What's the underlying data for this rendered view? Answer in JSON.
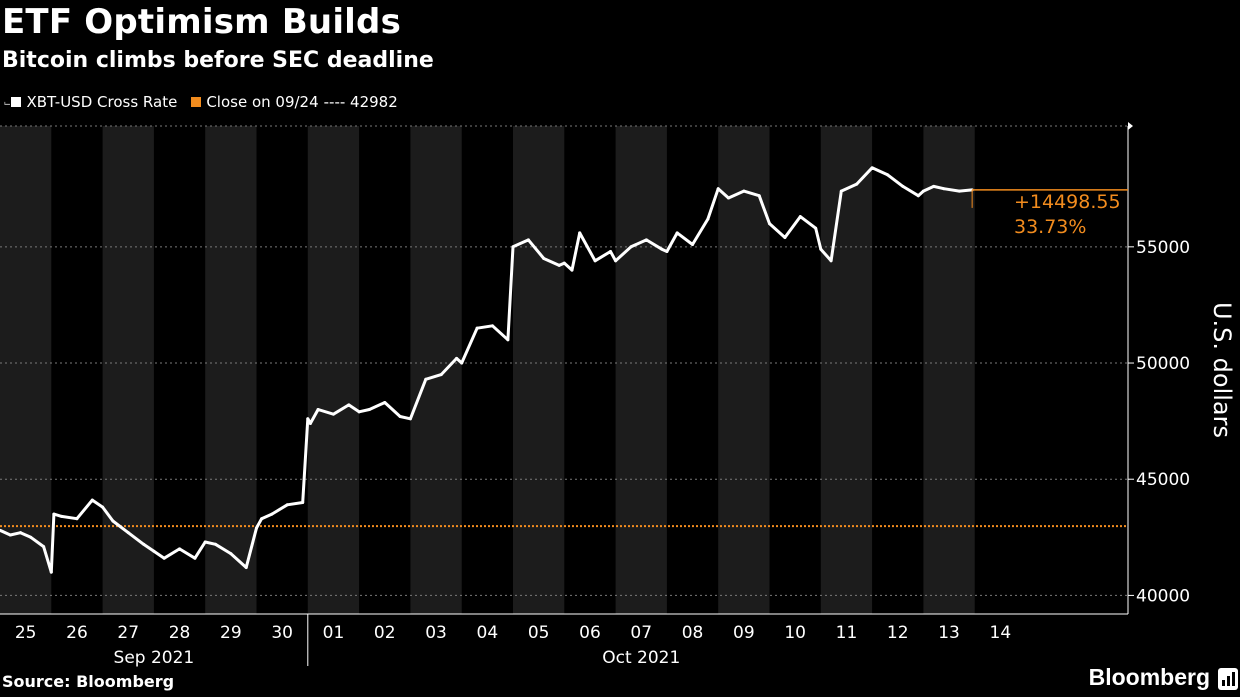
{
  "title": "ETF Optimism Builds",
  "subtitle": "Bitcoin climbs before SEC deadline",
  "source": "Source: Bloomberg",
  "brand": "Bloomberg",
  "colors": {
    "series": "#ffffff",
    "reference": "#f28c1e",
    "band": "#1c1c1c",
    "grid": "#7a7a7a"
  },
  "chart_data": {
    "type": "line",
    "ylabel": "U.S. dollars",
    "ylim": [
      39200,
      60200
    ],
    "yticks": [
      40000,
      45000,
      50000,
      55000
    ],
    "grid": true,
    "legend_position": "top-left",
    "x_day_labels": [
      "25",
      "26",
      "27",
      "28",
      "29",
      "30",
      "01",
      "02",
      "03",
      "04",
      "05",
      "06",
      "07",
      "08",
      "09",
      "10",
      "11",
      "12",
      "13",
      "14"
    ],
    "x_month_labels": [
      "Sep 2021",
      "Oct 2021"
    ],
    "series": [
      {
        "name": "XBT-USD Cross Rate",
        "x_days_from_sep25": [
          0,
          0.2,
          0.4,
          0.6,
          0.85,
          1.0,
          1.05,
          1.2,
          1.5,
          1.8,
          2.0,
          2.2,
          2.5,
          2.8,
          3.0,
          3.2,
          3.5,
          3.8,
          4.0,
          4.2,
          4.5,
          4.8,
          5.0,
          5.1,
          5.3,
          5.6,
          5.9,
          6.0,
          6.05,
          6.2,
          6.5,
          6.8,
          7.0,
          7.2,
          7.5,
          7.8,
          8.0,
          8.3,
          8.6,
          8.9,
          9.0,
          9.3,
          9.6,
          9.9,
          10.0,
          10.3,
          10.6,
          10.9,
          11.0,
          11.15,
          11.3,
          11.6,
          11.9,
          12.0,
          12.3,
          12.6,
          12.9,
          13.0,
          13.2,
          13.5,
          13.8,
          14.0,
          14.2,
          14.5,
          14.8,
          15.0,
          15.3,
          15.6,
          15.9,
          16.0,
          16.2,
          16.4,
          16.7,
          17.0,
          17.3,
          17.6,
          17.9,
          18.0,
          18.2,
          18.4,
          18.7,
          18.95
        ],
        "y": [
          42800,
          42600,
          42700,
          42500,
          42100,
          41000,
          43500,
          43400,
          43300,
          44100,
          43800,
          43200,
          42700,
          42200,
          41900,
          41600,
          42000,
          41600,
          42300,
          42200,
          41800,
          41200,
          42900,
          43300,
          43500,
          43900,
          44000,
          47600,
          47400,
          48000,
          47800,
          48200,
          47900,
          48000,
          48300,
          47700,
          47600,
          49300,
          49500,
          50200,
          50000,
          51500,
          51600,
          51000,
          55000,
          55300,
          54500,
          54200,
          54300,
          54000,
          55600,
          54400,
          54800,
          54400,
          55000,
          55300,
          54900,
          54800,
          55600,
          55100,
          56200,
          57500,
          57100,
          57400,
          57200,
          56000,
          55400,
          56300,
          55800,
          54900,
          54400,
          57400,
          57700,
          58400,
          58100,
          57600,
          57200,
          57400,
          57600,
          57500,
          57400,
          57450
        ]
      },
      {
        "name": "Close on 09/24",
        "value": 42982,
        "legend_suffix": "---- 42982"
      }
    ],
    "annotations": {
      "change": "+14498.55",
      "percent": "33.73%"
    }
  }
}
